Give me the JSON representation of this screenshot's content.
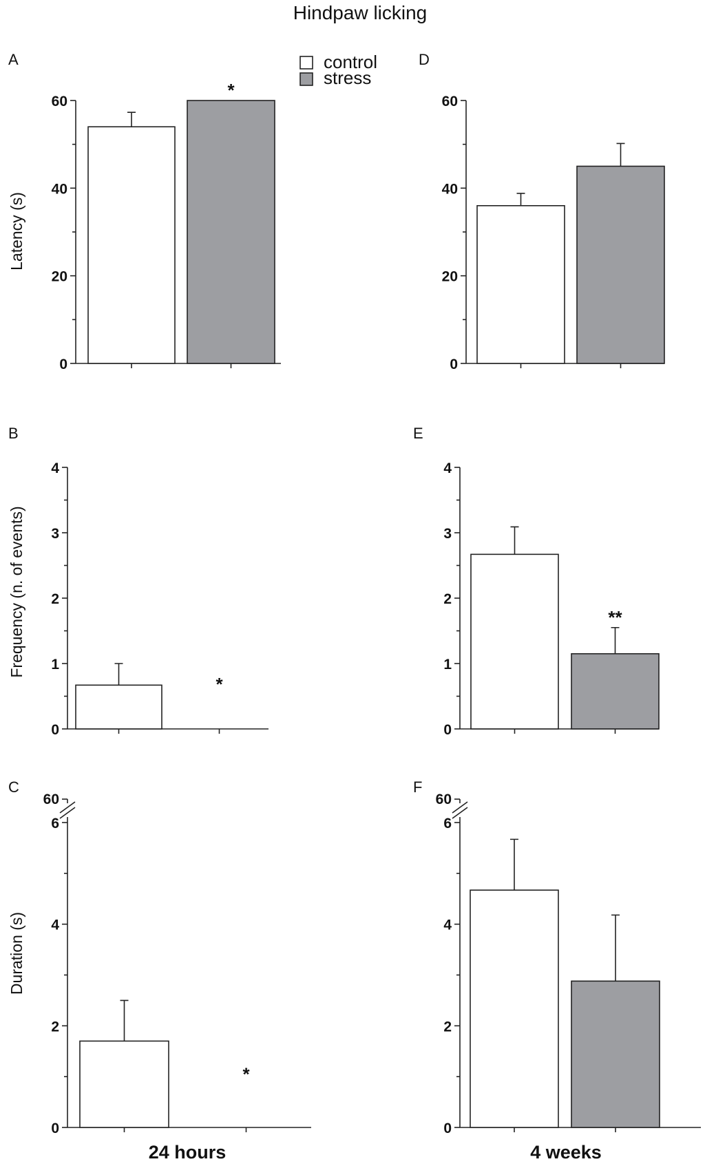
{
  "title": "Hindpaw licking",
  "legend": {
    "items": [
      {
        "label": "control",
        "color": "#ffffff"
      },
      {
        "label": "stress",
        "color": "#9d9ea2"
      }
    ]
  },
  "xlabels": {
    "left": "24 hours",
    "right": "4 weeks"
  },
  "ylabels": {
    "latency": "Latency (s)",
    "frequency": "Frequency (n. of events)",
    "duration": "Duration (s)"
  },
  "colors": {
    "control": "#ffffff",
    "stress": "#9d9ea2",
    "axis": "#222222"
  },
  "chart_data": [
    {
      "panel": "A",
      "type": "bar",
      "ylabel": "Latency (s)",
      "ylim": [
        0,
        60
      ],
      "yticks": [
        0,
        20,
        40,
        60
      ],
      "series": [
        {
          "name": "control",
          "value": 54,
          "error": 3.3,
          "sig": ""
        },
        {
          "name": "stress",
          "value": 60,
          "error": 0,
          "sig": "*"
        }
      ]
    },
    {
      "panel": "B",
      "type": "bar",
      "ylabel": "Frequency (n. of events)",
      "ylim": [
        0,
        4
      ],
      "yticks": [
        0,
        1,
        2,
        3,
        4
      ],
      "series": [
        {
          "name": "control",
          "value": 0.67,
          "error": 0.33,
          "sig": ""
        },
        {
          "name": "stress",
          "value": 0,
          "error": 0,
          "sig": "*"
        }
      ]
    },
    {
      "panel": "C",
      "type": "bar",
      "ylabel": "Duration (s)",
      "ylim": [
        0,
        6
      ],
      "yticks": [
        0,
        2,
        4,
        6
      ],
      "axis_break_label": "60",
      "xlabel": "24 hours",
      "series": [
        {
          "name": "control",
          "value": 1.7,
          "error": 0.8,
          "sig": ""
        },
        {
          "name": "stress",
          "value": 0,
          "error": 0,
          "sig": "*"
        }
      ]
    },
    {
      "panel": "D",
      "type": "bar",
      "ylabel": "",
      "ylim": [
        0,
        60
      ],
      "yticks": [
        0,
        20,
        40,
        60
      ],
      "series": [
        {
          "name": "control",
          "value": 36,
          "error": 2.8,
          "sig": ""
        },
        {
          "name": "stress",
          "value": 45,
          "error": 5.2,
          "sig": ""
        }
      ]
    },
    {
      "panel": "E",
      "type": "bar",
      "ylabel": "",
      "ylim": [
        0,
        4
      ],
      "yticks": [
        0,
        1,
        2,
        3,
        4
      ],
      "series": [
        {
          "name": "control",
          "value": 2.67,
          "error": 0.42,
          "sig": ""
        },
        {
          "name": "stress",
          "value": 1.15,
          "error": 0.4,
          "sig": "**"
        }
      ]
    },
    {
      "panel": "F",
      "type": "bar",
      "ylabel": "",
      "ylim": [
        0,
        6
      ],
      "yticks": [
        0,
        2,
        4,
        6
      ],
      "axis_break_label": "60",
      "xlabel": "4 weeks",
      "series": [
        {
          "name": "control",
          "value": 4.67,
          "error": 1.0,
          "sig": ""
        },
        {
          "name": "stress",
          "value": 2.88,
          "error": 1.3,
          "sig": ""
        }
      ]
    }
  ]
}
